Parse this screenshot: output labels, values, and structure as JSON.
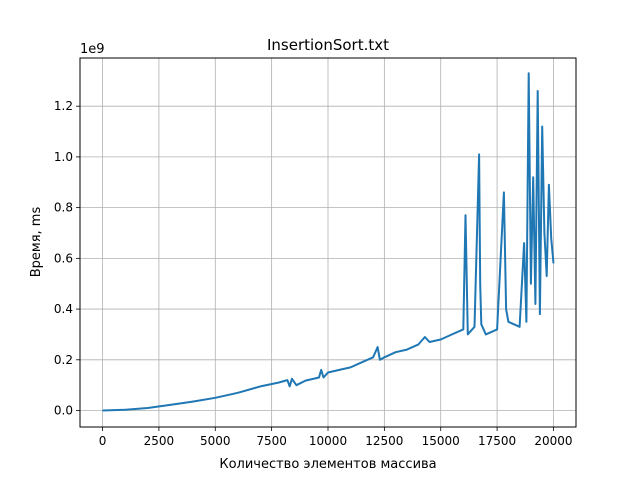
{
  "chart_data": {
    "type": "line",
    "title": "InsertionSort.txt",
    "xlabel": "Количество элементов массива",
    "ylabel": "Время, ms",
    "y_offset_label": "1e9",
    "xlim": [
      -1000,
      21000
    ],
    "ylim": [
      -0.065,
      1.39
    ],
    "y_scale_factor": 1000000000,
    "x_ticks": [
      0,
      2500,
      5000,
      7500,
      10000,
      12500,
      15000,
      17500,
      20000
    ],
    "x_tick_labels": [
      "0",
      "2500",
      "5000",
      "7500",
      "10000",
      "12500",
      "15000",
      "17500",
      "20000"
    ],
    "y_ticks": [
      0.0,
      0.2,
      0.4,
      0.6,
      0.8,
      1.0,
      1.2
    ],
    "y_tick_labels": [
      "0.0",
      "0.2",
      "0.4",
      "0.6",
      "0.8",
      "1.0",
      "1.2"
    ],
    "grid": true,
    "color": "#1f77b4",
    "series": [
      {
        "name": "",
        "x": [
          0,
          1000,
          2000,
          3000,
          4000,
          5000,
          6000,
          7000,
          7800,
          8200,
          8300,
          8400,
          8600,
          9000,
          9600,
          9700,
          9800,
          10000,
          10500,
          11000,
          11500,
          12000,
          12200,
          12300,
          12500,
          13000,
          13500,
          14000,
          14300,
          14500,
          15000,
          15500,
          16000,
          16100,
          16200,
          16500,
          16700,
          16750,
          16800,
          17000,
          17500,
          17800,
          17900,
          18000,
          18500,
          18700,
          18800,
          18900,
          19000,
          19100,
          19200,
          19300,
          19400,
          19500,
          19600,
          19700,
          19800,
          19900,
          20000
        ],
        "y": [
          0.0,
          0.003,
          0.01,
          0.022,
          0.035,
          0.05,
          0.07,
          0.095,
          0.11,
          0.12,
          0.095,
          0.125,
          0.1,
          0.118,
          0.13,
          0.16,
          0.13,
          0.15,
          0.16,
          0.17,
          0.19,
          0.21,
          0.25,
          0.2,
          0.21,
          0.23,
          0.24,
          0.26,
          0.29,
          0.27,
          0.28,
          0.3,
          0.32,
          0.77,
          0.3,
          0.33,
          1.01,
          0.5,
          0.34,
          0.3,
          0.32,
          0.86,
          0.4,
          0.35,
          0.33,
          0.66,
          0.35,
          1.33,
          0.5,
          0.92,
          0.42,
          1.26,
          0.38,
          1.12,
          0.7,
          0.53,
          0.89,
          0.68,
          0.58
        ]
      }
    ]
  }
}
